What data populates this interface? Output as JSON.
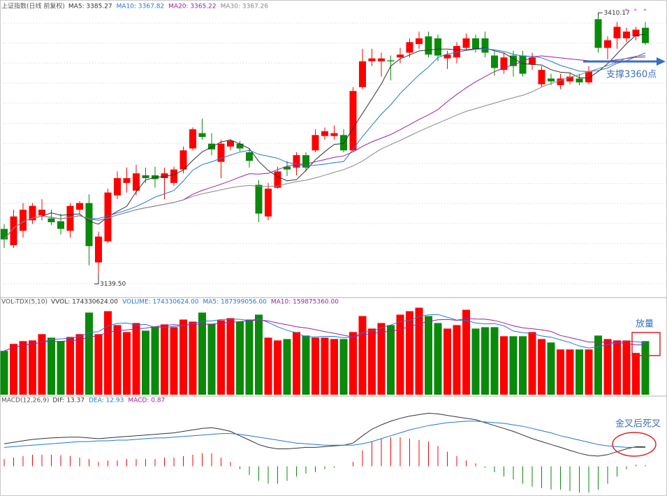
{
  "chart_data": [
    {
      "type": "candlestick",
      "title": "上证指数(日线 前复权)",
      "indicators": [
        {
          "label": "MA5: 3385.27",
          "color": "#333333"
        },
        {
          "label": "MA10: 3367.82",
          "color": "#1e78d8"
        },
        {
          "label": "MA20: 3365.22",
          "color": "#a020a0"
        },
        {
          "label": "MA30: 3367.26",
          "color": "#888888"
        }
      ],
      "open": [
        3186,
        3169,
        3184,
        3195,
        3200,
        3197,
        3194,
        3184,
        3206,
        3213,
        3151,
        3173,
        3221,
        3234,
        3226,
        3242,
        3242,
        3239,
        3234,
        3248,
        3270,
        3286,
        3275,
        3256,
        3272,
        3275,
        3266,
        3232,
        3199,
        3229,
        3251,
        3250,
        3263,
        3268,
        3283,
        3283,
        3284,
        3268,
        3334,
        3361,
        3361,
        3362,
        3365,
        3370,
        3379,
        3387,
        3385,
        3364,
        3365,
        3375,
        3385,
        3385,
        3367,
        3352,
        3367,
        3367,
        3358,
        3337,
        3343,
        3336,
        3340,
        3343,
        3339,
        3405,
        3375,
        3385,
        3385,
        3387,
        3396
      ],
      "high": [
        3191,
        3206,
        3213,
        3213,
        3217,
        3206,
        3202,
        3213,
        3215,
        3222,
        3183,
        3228,
        3246,
        3250,
        3253,
        3250,
        3251,
        3250,
        3251,
        3272,
        3292,
        3301,
        3286,
        3279,
        3280,
        3278,
        3270,
        3237,
        3234,
        3251,
        3257,
        3266,
        3266,
        3290,
        3292,
        3294,
        3290,
        3334,
        3374,
        3374,
        3370,
        3367,
        3375,
        3385,
        3392,
        3392,
        3389,
        3372,
        3381,
        3390,
        3389,
        3392,
        3372,
        3370,
        3372,
        3372,
        3370,
        3356,
        3348,
        3348,
        3349,
        3348,
        3356,
        3410.17,
        3387,
        3402,
        3396,
        3397,
        3402
      ],
      "low": [
        3166,
        3166,
        3177,
        3191,
        3195,
        3190,
        3180,
        3177,
        3202,
        3148,
        3139.5,
        3171,
        3217,
        3224,
        3221,
        3234,
        3229,
        3217,
        3231,
        3244,
        3268,
        3279,
        3263,
        3239,
        3268,
        3267,
        3250,
        3193,
        3195,
        3228,
        3241,
        3242,
        3246,
        3266,
        3279,
        3279,
        3266,
        3266,
        3332,
        3356,
        3345,
        3341,
        3359,
        3365,
        3374,
        3365,
        3361,
        3353,
        3359,
        3372,
        3370,
        3365,
        3346,
        3348,
        3345,
        3345,
        3352,
        3334,
        3336,
        3332,
        3337,
        3336,
        3337,
        3370,
        3363,
        3374,
        3381,
        3383,
        3378
      ],
      "close": [
        3175,
        3199,
        3206,
        3210,
        3206,
        3193,
        3186,
        3210,
        3213,
        3168,
        3178,
        3224,
        3239,
        3239,
        3244,
        3239,
        3238,
        3244,
        3248,
        3268,
        3290,
        3282,
        3269,
        3275,
        3278,
        3270,
        3257,
        3202,
        3228,
        3246,
        3248,
        3263,
        3250,
        3284,
        3288,
        3286,
        3268,
        3330,
        3361,
        3364,
        3364,
        3361,
        3368,
        3381,
        3385,
        3368,
        3367,
        3368,
        3377,
        3385,
        3374,
        3370,
        3354,
        3365,
        3356,
        3348,
        3365,
        3352,
        3340,
        3343,
        3345,
        3339,
        3350,
        3375,
        3383,
        3397,
        3392,
        3394,
        3380
      ],
      "up_color": "#ff0000",
      "down_color": "#0a8a0a",
      "ylim": [
        3115,
        3425
      ],
      "annotations": {
        "high_label": "3410.17",
        "low_label": "3139.50",
        "support": "支撑3360点",
        "stars": [
          "*",
          "*",
          "*"
        ]
      }
    },
    {
      "type": "volume",
      "title": "VOL-TDX(5,10)",
      "indicators": [
        {
          "label": "VVOL: 174330624.00",
          "color": "#333333"
        },
        {
          "label": "VOLUME: 174330624.00",
          "color": "#1e78d8"
        },
        {
          "label": "MA5: 187399056.00",
          "color": "#1e78d8"
        },
        {
          "label": "MA10: 159875360.00",
          "color": "#a020a0"
        }
      ],
      "values": [
        142600000,
        165300000,
        174300000,
        176600000,
        197000000,
        185600000,
        174300000,
        187900000,
        197000000,
        267200000,
        197000000,
        271700000,
        226400000,
        203800000,
        233200000,
        208300000,
        221900000,
        228700000,
        219600000,
        244500000,
        237700000,
        267200000,
        230900000,
        242200000,
        249000000,
        237700000,
        244500000,
        260400000,
        185600000,
        176600000,
        181100000,
        203800000,
        192400000,
        185600000,
        185600000,
        181100000,
        181100000,
        203800000,
        255800000,
        215100000,
        233200000,
        226400000,
        260400000,
        271700000,
        283000000,
        255800000,
        233200000,
        215100000,
        226400000,
        276200000,
        215100000,
        219600000,
        219600000,
        190200000,
        190200000,
        190200000,
        203800000,
        181100000,
        169800000,
        147200000,
        147200000,
        147200000,
        147200000,
        192400000,
        181100000,
        176600000,
        176600000,
        135800000,
        174330624
      ],
      "ylim": [
        0,
        300000000
      ],
      "annotation": "放量"
    },
    {
      "type": "macd",
      "title": "MACD(12,26,9)",
      "indicators": [
        {
          "label": "DIF: 13.37",
          "color": "#333333"
        },
        {
          "label": "DEA: 12.93",
          "color": "#1e78d8"
        },
        {
          "label": "MACD: 0.87",
          "color": "#a020a0"
        }
      ],
      "dif": [
        15.5,
        16.5,
        17.5,
        18.5,
        19,
        19.5,
        19.8,
        20,
        20,
        19.5,
        19,
        19.5,
        20,
        20.5,
        21,
        21.5,
        22,
        22.5,
        23,
        24,
        25,
        26,
        26.5,
        25.5,
        24,
        21,
        18,
        15,
        13,
        12,
        12,
        12.5,
        13,
        13,
        13.5,
        14,
        14.5,
        16,
        21,
        25.5,
        28.5,
        31,
        33,
        34.5,
        35.5,
        36.5,
        36,
        35,
        34,
        33,
        32,
        30,
        28,
        26,
        24,
        21.5,
        19,
        17,
        15,
        13,
        11,
        9,
        7.5,
        7,
        8,
        10,
        12,
        13.5,
        13.37
      ],
      "dea": [
        13,
        13.5,
        14,
        14.5,
        15,
        15.5,
        16,
        16.5,
        17,
        17,
        17.5,
        17.5,
        18,
        18,
        18.5,
        19,
        19.5,
        19.5,
        20,
        20.5,
        21,
        21.5,
        22,
        22.5,
        22.5,
        22,
        21,
        20,
        19,
        18,
        17,
        16,
        15.5,
        15,
        14.5,
        14.5,
        14.5,
        14.5,
        15.5,
        17,
        19,
        21,
        23,
        25,
        26.5,
        28,
        29,
        30,
        30.5,
        31,
        31,
        30.5,
        30,
        29.5,
        28.5,
        27.5,
        26,
        24.5,
        23,
        21,
        19.5,
        18,
        16.5,
        15,
        14,
        13.5,
        13,
        13,
        12.93
      ],
      "macd": [
        5,
        6,
        7,
        8,
        8,
        8,
        7.6,
        7,
        6,
        5,
        3,
        4,
        4,
        5,
        5,
        5,
        5,
        6,
        6,
        7,
        8,
        9,
        9,
        6,
        3,
        -2,
        -6,
        -10,
        -12,
        -12,
        -10,
        -7,
        -5,
        -4,
        -2,
        -1,
        0,
        3,
        11,
        17,
        19,
        20,
        20,
        19,
        18,
        17,
        14,
        10,
        7,
        4,
        2,
        -1,
        -4,
        -7,
        -9,
        -12,
        -14,
        -15,
        -16,
        -16,
        -17,
        -18,
        -18,
        -16,
        -12,
        -7,
        -2,
        1,
        0.87
      ],
      "ylim": [
        -18,
        42
      ],
      "annotation": "金叉后死叉"
    }
  ]
}
